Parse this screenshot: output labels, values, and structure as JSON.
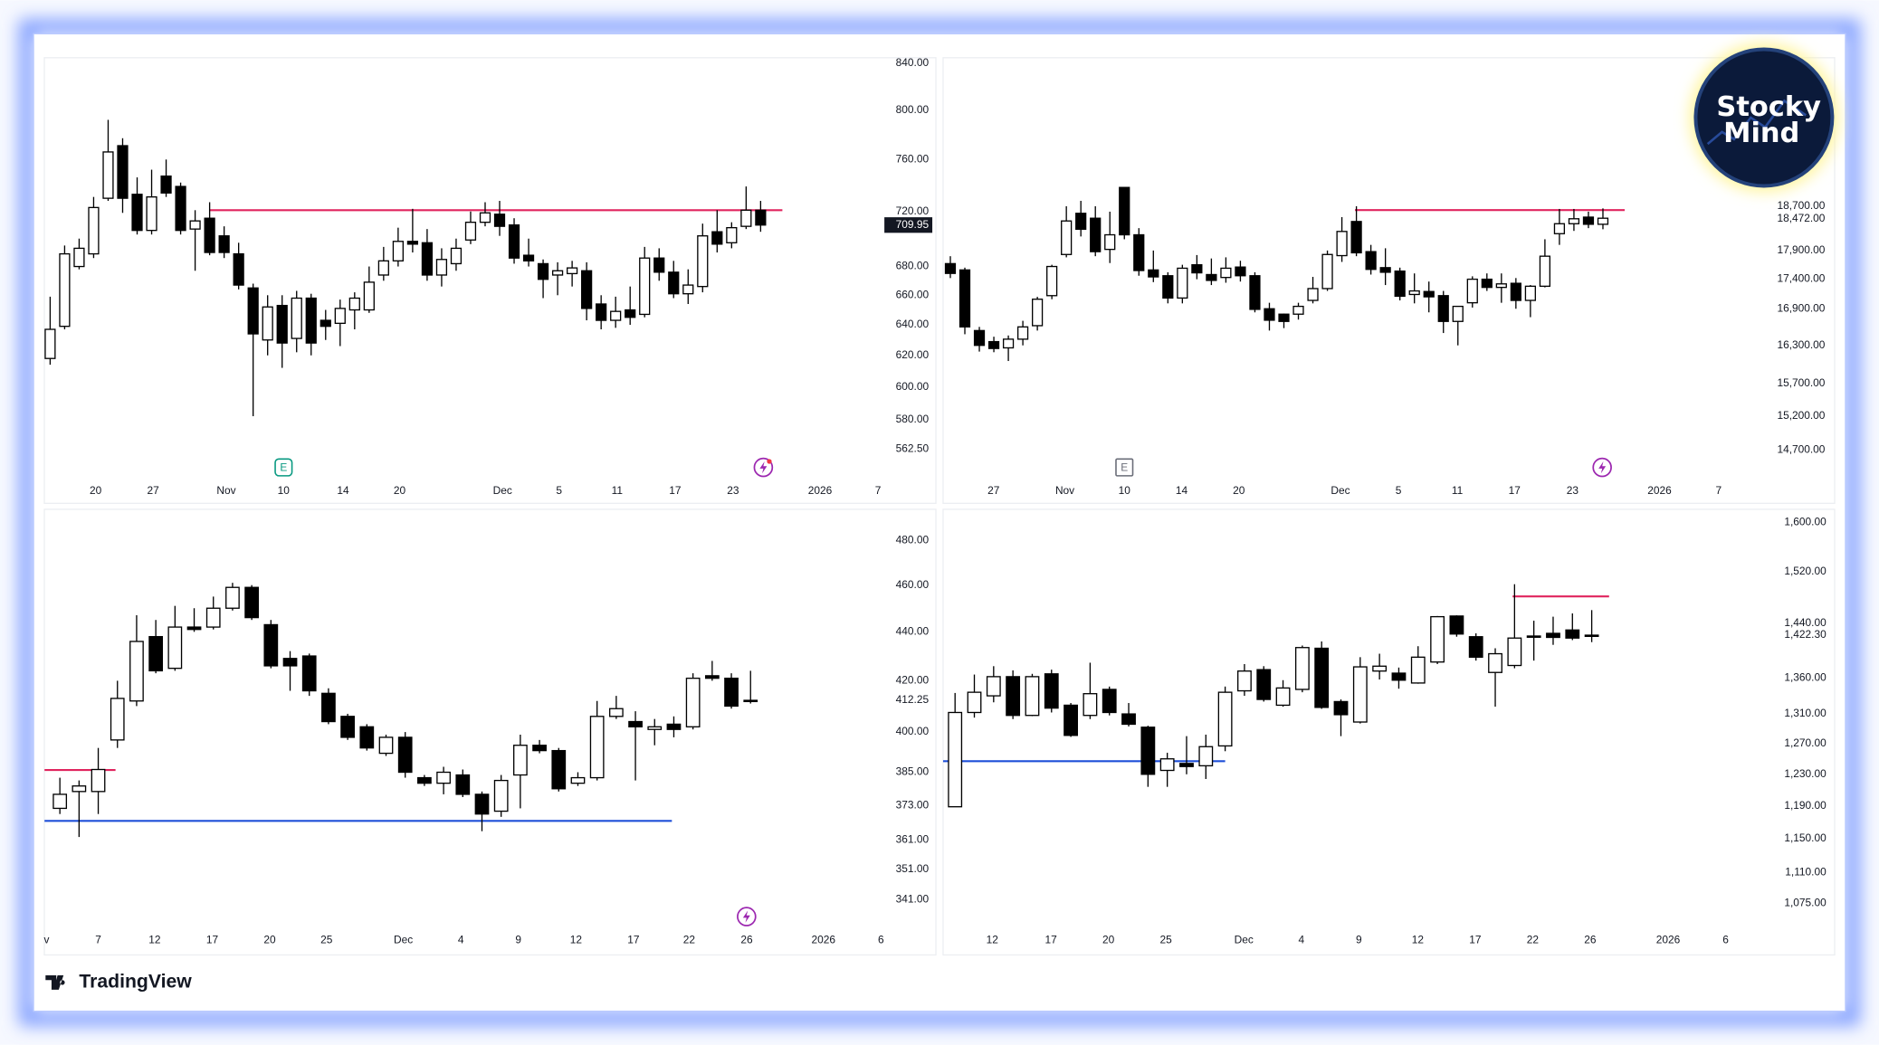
{
  "chart_data": [
    {
      "type": "candlestick",
      "log_scale": true,
      "up_color": "#ffffff",
      "down_color": "#000000",
      "xlim": [
        -0.4,
        57.7
      ],
      "ylim": [
        545,
        848
      ],
      "xticks": [
        {
          "value": 3.14,
          "label": "20"
        },
        {
          "value": 7.1,
          "label": "27"
        },
        {
          "value": 12.15,
          "label": "Nov"
        },
        {
          "value": 16.1,
          "label": "10"
        },
        {
          "value": 20.2,
          "label": "14"
        },
        {
          "value": 24.1,
          "label": "20"
        },
        {
          "value": 31.2,
          "label": "Dec"
        },
        {
          "value": 35.1,
          "label": "5"
        },
        {
          "value": 39.1,
          "label": "11"
        },
        {
          "value": 43.1,
          "label": "17"
        },
        {
          "value": 47.1,
          "label": "23"
        },
        {
          "value": 53.1,
          "label": "2026"
        },
        {
          "value": 57.1,
          "label": "7"
        }
      ],
      "yticks": [
        {
          "value": 840,
          "label": "840.00"
        },
        {
          "value": 800,
          "label": "800.00"
        },
        {
          "value": 760,
          "label": "760.00"
        },
        {
          "value": 720,
          "label": "720.00"
        },
        {
          "value": 680,
          "label": "680.00"
        },
        {
          "value": 660,
          "label": "660.00"
        },
        {
          "value": 640,
          "label": "640.00"
        },
        {
          "value": 620,
          "label": "620.00"
        },
        {
          "value": 600,
          "label": "600.00"
        },
        {
          "value": 580,
          "label": "580.00"
        },
        {
          "value": 562.5,
          "label": "562.50"
        }
      ],
      "open": [
        618,
        639,
        680,
        689,
        730,
        771,
        733,
        706,
        747,
        739,
        707,
        715,
        702,
        689,
        665,
        630,
        653,
        631,
        658,
        643,
        641,
        650,
        650,
        674,
        684,
        698,
        697,
        674,
        682,
        699,
        712,
        718,
        710,
        688,
        682,
        674,
        675,
        677,
        654,
        643,
        650,
        647,
        686,
        676,
        661,
        666,
        705,
        697,
        709,
        721
      ],
      "high": [
        659,
        695,
        700,
        731,
        792,
        777,
        746,
        752,
        760,
        742,
        721,
        727,
        709,
        697,
        668,
        660,
        660,
        663,
        661,
        650,
        657,
        662,
        680,
        694,
        708,
        722,
        707,
        693,
        700,
        720,
        727,
        728,
        715,
        700,
        685,
        683,
        684,
        683,
        660,
        659,
        666,
        694,
        693,
        684,
        678,
        711,
        721,
        712,
        739,
        728
      ],
      "low": [
        614,
        637,
        678,
        686,
        728,
        719,
        703,
        703,
        731,
        703,
        677,
        688,
        686,
        664,
        582,
        620,
        612,
        622,
        620,
        630,
        626,
        637,
        648,
        670,
        680,
        690,
        670,
        666,
        677,
        696,
        709,
        702,
        682,
        680,
        658,
        660,
        666,
        643,
        637,
        638,
        640,
        645,
        670,
        658,
        654,
        662,
        690,
        693,
        707,
        705
      ],
      "close": [
        637,
        689,
        693,
        723,
        766,
        730,
        706,
        731,
        734,
        706,
        713,
        690,
        690,
        667,
        634,
        652,
        628,
        658,
        628,
        639,
        651,
        658,
        669,
        684,
        698,
        696,
        674,
        685,
        693,
        712,
        719,
        709,
        686,
        684,
        671,
        677,
        679,
        651,
        643,
        649,
        645,
        686,
        676,
        661,
        667,
        702,
        696,
        708,
        721,
        709.95
      ],
      "levels": [
        {
          "value": 721,
          "from": 11,
          "to": 50.5,
          "color": "#e0245e"
        }
      ],
      "events": [
        {
          "x": 16.1,
          "label": "E",
          "color": "#089981"
        }
      ],
      "last_price": 709.95
    },
    {
      "type": "candlestick",
      "log_scale": true,
      "up_color": "#ffffff",
      "down_color": "#000000",
      "xlim": [
        -0.5,
        56.6
      ],
      "ylim": [
        14280,
        21730
      ],
      "xticks": [
        {
          "value": 2.98,
          "label": "27"
        },
        {
          "value": 7.9,
          "label": "Nov"
        },
        {
          "value": 12,
          "label": "10"
        },
        {
          "value": 15.95,
          "label": "14"
        },
        {
          "value": 19.9,
          "label": "20"
        },
        {
          "value": 26.9,
          "label": "Dec"
        },
        {
          "value": 30.9,
          "label": "5"
        },
        {
          "value": 34.96,
          "label": "11"
        },
        {
          "value": 38.9,
          "label": "17"
        },
        {
          "value": 42.9,
          "label": "23"
        },
        {
          "value": 48.9,
          "label": "2026"
        },
        {
          "value": 52.98,
          "label": "7"
        }
      ],
      "yticks": [
        {
          "value": 18700,
          "label": "18,700.00"
        },
        {
          "value": 18472,
          "label": "18,472.00"
        },
        {
          "value": 17900,
          "label": "17,900.00"
        },
        {
          "value": 17400,
          "label": "17,400.00"
        },
        {
          "value": 16900,
          "label": "16,900.00"
        },
        {
          "value": 16300,
          "label": "16,300.00"
        },
        {
          "value": 15700,
          "label": "15,700.00"
        },
        {
          "value": 15200,
          "label": "15,200.00"
        },
        {
          "value": 14700,
          "label": "14,700.00"
        }
      ],
      "open": [
        17670,
        17560,
        16540,
        16360,
        16260,
        16400,
        16620,
        17120,
        17830,
        18570,
        18480,
        17920,
        19050,
        18180,
        17560,
        17460,
        17080,
        17650,
        17480,
        17430,
        17610,
        17460,
        16900,
        16810,
        16810,
        17040,
        17240,
        17810,
        18420,
        17880,
        17600,
        17540,
        17140,
        17190,
        17120,
        16690,
        17000,
        17400,
        17260,
        17330,
        17040,
        17280,
        18200,
        18380,
        18500,
        18370
      ],
      "high": [
        17800,
        17600,
        16600,
        16440,
        16460,
        16700,
        17100,
        17650,
        18700,
        18800,
        18700,
        18600,
        19050,
        18300,
        17900,
        17520,
        17650,
        17820,
        17760,
        17780,
        17720,
        17520,
        17000,
        16820,
        17000,
        17440,
        17900,
        18500,
        18700,
        18000,
        17940,
        17600,
        17500,
        17360,
        17200,
        16940,
        17450,
        17500,
        17500,
        17420,
        17300,
        18100,
        18650,
        18650,
        18600,
        18660
      ],
      "low": [
        17420,
        16480,
        16200,
        16190,
        16050,
        16300,
        16540,
        17060,
        17780,
        18150,
        17800,
        17680,
        18100,
        17460,
        17350,
        16990,
        16990,
        17400,
        17300,
        17340,
        17360,
        16840,
        16540,
        16580,
        16720,
        16990,
        17200,
        17700,
        17800,
        17480,
        17300,
        17040,
        16990,
        16840,
        16500,
        16300,
        16920,
        17200,
        17000,
        16900,
        16760,
        17260,
        18000,
        18250,
        18300,
        18280
      ],
      "close": [
        17500,
        16600,
        16300,
        16250,
        16400,
        16600,
        17060,
        17620,
        18430,
        18280,
        17880,
        18180,
        18180,
        17550,
        17440,
        17080,
        17590,
        17510,
        17380,
        17590,
        17460,
        16890,
        16710,
        16690,
        16940,
        17240,
        17830,
        18240,
        17860,
        17570,
        17520,
        17110,
        17200,
        17100,
        16690,
        16940,
        17400,
        17260,
        17320,
        17040,
        17280,
        17800,
        18380,
        18470,
        18370,
        18480
      ],
      "levels": [
        {
          "value": 18630,
          "from": 27.9,
          "to": 46.5,
          "color": "#e0245e"
        }
      ],
      "events": [
        {
          "x": 12,
          "label": "E",
          "color": "#6a6d78"
        }
      ]
    },
    {
      "type": "candlestick",
      "log_scale": true,
      "up_color": "#ffffff",
      "down_color": "#000000",
      "xlim": [
        -0.81,
        43.1
      ],
      "ylim": [
        331.8,
        486
      ],
      "xticks": [
        {
          "value": -0.69,
          "label": "v"
        },
        {
          "value": 2,
          "label": "7"
        },
        {
          "value": 4.94,
          "label": "12"
        },
        {
          "value": 7.94,
          "label": "17"
        },
        {
          "value": 10.94,
          "label": "20"
        },
        {
          "value": 13.9,
          "label": "25"
        },
        {
          "value": 17.9,
          "label": "Dec"
        },
        {
          "value": 20.9,
          "label": "4"
        },
        {
          "value": 23.9,
          "label": "9"
        },
        {
          "value": 26.9,
          "label": "12"
        },
        {
          "value": 29.9,
          "label": "17"
        },
        {
          "value": 32.8,
          "label": "22"
        },
        {
          "value": 35.8,
          "label": "26"
        },
        {
          "value": 39.8,
          "label": "2026"
        },
        {
          "value": 42.8,
          "label": "6"
        }
      ],
      "yticks": [
        {
          "value": 480,
          "label": "480.00"
        },
        {
          "value": 460,
          "label": "460.00"
        },
        {
          "value": 440,
          "label": "440.00"
        },
        {
          "value": 420,
          "label": "420.00"
        },
        {
          "value": 412.25,
          "label": "412.25"
        },
        {
          "value": 400,
          "label": "400.00"
        },
        {
          "value": 385,
          "label": "385.00"
        },
        {
          "value": 373,
          "label": "373.00"
        },
        {
          "value": 361,
          "label": "361.00"
        },
        {
          "value": 351,
          "label": "351.00"
        },
        {
          "value": 341,
          "label": "341.00"
        }
      ],
      "open": [
        372,
        378,
        378,
        397,
        412,
        438,
        425,
        442,
        442,
        450,
        459,
        443,
        429,
        430,
        415,
        406,
        402,
        392,
        398,
        383,
        381,
        384,
        377,
        371,
        384,
        395,
        393,
        381,
        383,
        406,
        404,
        401,
        403,
        402,
        422,
        421,
        412
      ],
      "high": [
        383,
        382,
        394,
        420,
        447,
        445,
        451,
        450,
        455,
        461,
        460,
        445,
        432,
        431,
        417,
        407,
        403,
        399,
        400,
        384,
        387,
        386,
        378,
        384,
        399,
        397,
        394,
        385,
        412,
        414,
        408,
        405,
        406,
        423,
        428,
        423,
        424
      ],
      "low": [
        370,
        362,
        370,
        394,
        410,
        423,
        424,
        440,
        441,
        449,
        445,
        425,
        416,
        414,
        403,
        397,
        393,
        391,
        383,
        380,
        377,
        376,
        364,
        369,
        372,
        392,
        378,
        380,
        382,
        405,
        382,
        395,
        398,
        401,
        420,
        409,
        411
      ],
      "close": [
        377,
        380,
        386,
        413,
        436,
        424,
        442,
        441,
        450,
        459,
        446,
        426,
        426,
        416,
        404,
        398,
        394,
        398,
        385,
        381,
        385,
        377,
        370,
        382,
        395,
        393,
        379,
        383,
        406,
        409,
        402,
        402,
        401,
        421,
        421,
        410,
        412.25
      ],
      "levels": [
        {
          "value": 385.8,
          "from": -0.8,
          "to": 2.9,
          "color": "#e0245e"
        },
        {
          "value": 367.6,
          "from": -0.8,
          "to": 31.9,
          "color": "#1e4fd8"
        }
      ],
      "events": []
    },
    {
      "type": "candlestick",
      "log_scale": true,
      "up_color": "#ffffff",
      "down_color": "#000000",
      "xlim": [
        -0.62,
        42.3
      ],
      "ylim": [
        1047,
        1622
      ],
      "xticks": [
        {
          "value": 1.93,
          "label": "12"
        },
        {
          "value": 4.97,
          "label": "17"
        },
        {
          "value": 7.95,
          "label": "20"
        },
        {
          "value": 10.93,
          "label": "25"
        },
        {
          "value": 14.97,
          "label": "Dec"
        },
        {
          "value": 17.95,
          "label": "4"
        },
        {
          "value": 20.93,
          "label": "9"
        },
        {
          "value": 23.98,
          "label": "12"
        },
        {
          "value": 26.96,
          "label": "17"
        },
        {
          "value": 29.94,
          "label": "22"
        },
        {
          "value": 32.92,
          "label": "26"
        },
        {
          "value": 36.96,
          "label": "2026"
        },
        {
          "value": 39.94,
          "label": "6"
        }
      ],
      "yticks": [
        {
          "value": 1600,
          "label": "1,600.00"
        },
        {
          "value": 1520,
          "label": "1,520.00"
        },
        {
          "value": 1440,
          "label": "1,440.00"
        },
        {
          "value": 1422.3,
          "label": "1,422.30"
        },
        {
          "value": 1360,
          "label": "1,360.00"
        },
        {
          "value": 1310,
          "label": "1,310.00"
        },
        {
          "value": 1270,
          "label": "1,270.00"
        },
        {
          "value": 1230,
          "label": "1,230.00"
        },
        {
          "value": 1190,
          "label": "1,190.00"
        },
        {
          "value": 1150,
          "label": "1,150.00"
        },
        {
          "value": 1110,
          "label": "1,110.00"
        },
        {
          "value": 1075,
          "label": "1,075.00"
        }
      ],
      "open": [
        1189,
        1312,
        1335,
        1362,
        1308,
        1366,
        1322,
        1308,
        1344,
        1310,
        1292,
        1235,
        1244,
        1241,
        1267,
        1342,
        1372,
        1322,
        1344,
        1403,
        1327,
        1299,
        1370,
        1367,
        1353,
        1383,
        1451,
        1420,
        1368,
        1378,
        1420,
        1425,
        1430,
        1421
      ],
      "high": [
        1339,
        1365,
        1377,
        1371,
        1366,
        1372,
        1325,
        1382,
        1348,
        1325,
        1294,
        1258,
        1280,
        1282,
        1348,
        1380,
        1377,
        1357,
        1407,
        1413,
        1330,
        1390,
        1395,
        1375,
        1406,
        1451,
        1452,
        1425,
        1403,
        1500,
        1444,
        1450,
        1455,
        1460
      ],
      "low": [
        1189,
        1305,
        1326,
        1303,
        1307,
        1312,
        1279,
        1303,
        1308,
        1293,
        1214,
        1214,
        1230,
        1224,
        1260,
        1335,
        1327,
        1320,
        1340,
        1317,
        1280,
        1297,
        1358,
        1345,
        1352,
        1380,
        1420,
        1385,
        1320,
        1374,
        1385,
        1408,
        1415,
        1412
      ],
      "close": [
        1312,
        1340,
        1362,
        1308,
        1362,
        1318,
        1281,
        1338,
        1312,
        1296,
        1230,
        1250,
        1240,
        1266,
        1340,
        1370,
        1330,
        1346,
        1404,
        1319,
        1309,
        1376,
        1377,
        1357,
        1390,
        1450,
        1424,
        1390,
        1395,
        1418,
        1421,
        1419,
        1418,
        1422.3
      ],
      "levels": [
        {
          "value": 1481,
          "from": 28.9,
          "to": 33.9,
          "color": "#e0245e"
        },
        {
          "value": 1247,
          "from": -0.62,
          "to": 14.0,
          "color": "#1e4fd8"
        }
      ],
      "events": []
    }
  ],
  "footer": {
    "brand": "TradingView"
  },
  "logo": {
    "line1": "Stocky",
    "line2": "Mind"
  }
}
